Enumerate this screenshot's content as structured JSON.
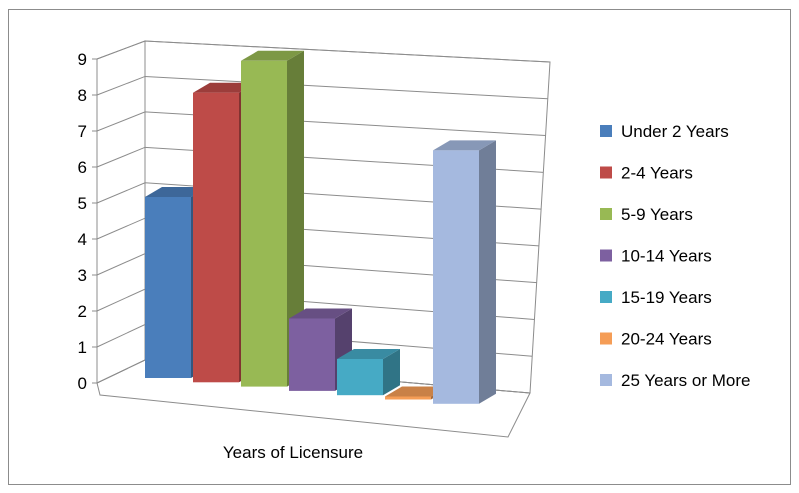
{
  "chart_data": {
    "type": "bar",
    "style": "3d-clustered-column",
    "xlabel": "Years of Licensure",
    "ylabel": "",
    "title": "",
    "ylim": [
      0,
      9
    ],
    "yticks": [
      "0",
      "1",
      "2",
      "3",
      "4",
      "5",
      "6",
      "7",
      "8",
      "9"
    ],
    "grid": true,
    "legend_position": "right",
    "series": [
      {
        "name": "Under 2 Years",
        "value": 5,
        "color": "#4a7ebb"
      },
      {
        "name": "2-4 Years",
        "value": 8,
        "color": "#be4b48"
      },
      {
        "name": "5-9 Years",
        "value": 9,
        "color": "#98b954"
      },
      {
        "name": "10-14 Years",
        "value": 2,
        "color": "#7d60a0"
      },
      {
        "name": "15-19 Years",
        "value": 1,
        "color": "#46aac5"
      },
      {
        "name": "20-24 Years",
        "value": 0,
        "color": "#f59d56"
      },
      {
        "name": "25 Years or More",
        "value": 7,
        "color": "#a5b9df"
      }
    ]
  }
}
